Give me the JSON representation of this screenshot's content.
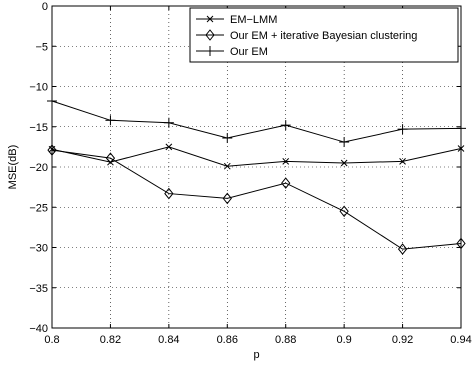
{
  "chart_data": {
    "type": "line",
    "title": "",
    "xlabel": "p",
    "ylabel": "MSE(dB)",
    "xlim": [
      0.8,
      0.94
    ],
    "ylim": [
      -40,
      0
    ],
    "xticks": [
      "0.8",
      "0.82",
      "0.84",
      "0.86",
      "0.88",
      "0.9",
      "0.92",
      "0.94"
    ],
    "yticks": [
      "0",
      "−5",
      "−10",
      "−15",
      "−20",
      "−25",
      "−30",
      "−35",
      "−40"
    ],
    "grid": true,
    "legend_position": "top-right",
    "x": [
      0.8,
      0.82,
      0.84,
      0.86,
      0.88,
      0.9,
      0.92,
      0.94
    ],
    "series": [
      {
        "name": "EM−LMM",
        "marker": "x",
        "values": [
          -17.8,
          -19.4,
          -17.5,
          -19.9,
          -19.3,
          -19.5,
          -19.3,
          -17.7
        ]
      },
      {
        "name": "Our EM + iterative Bayesian clustering",
        "marker": "diamond",
        "values": [
          -17.9,
          -18.9,
          -23.3,
          -23.9,
          -22.0,
          -25.5,
          -30.2,
          -29.5
        ]
      },
      {
        "name": "Our EM",
        "marker": "plus",
        "values": [
          -11.8,
          -14.2,
          -14.5,
          -16.4,
          -14.8,
          -16.9,
          -15.3,
          -15.2
        ]
      }
    ]
  }
}
